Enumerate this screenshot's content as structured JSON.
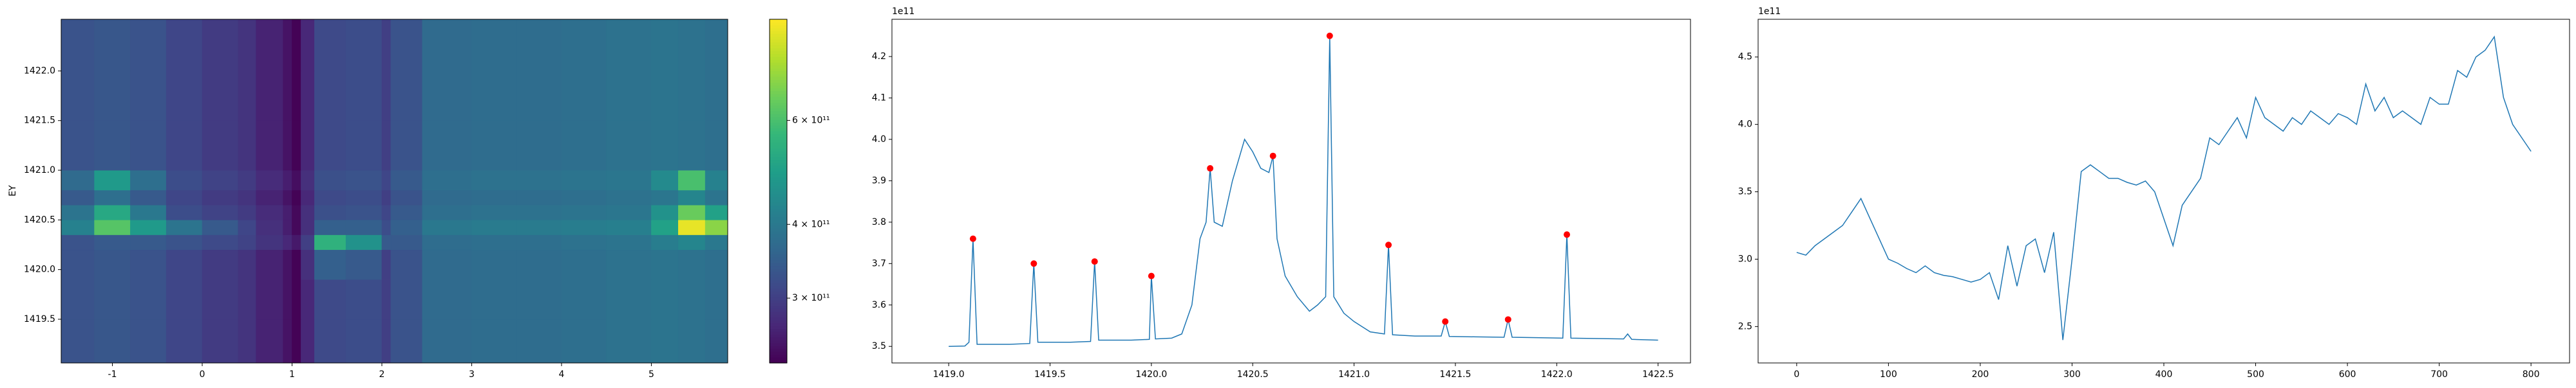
{
  "chart_data": [
    {
      "type": "heatmap",
      "y_label": "EY",
      "colormap": "viridis",
      "color_scale": "log",
      "xlim": [
        -1.57,
        5.85
      ],
      "ylim": [
        1419.06,
        1422.52
      ],
      "xticks": [
        -1,
        0,
        1,
        2,
        3,
        4,
        5
      ],
      "yticks": [
        1419.5,
        {
          "value": 1420,
          "label": "1420.0"
        },
        1420.5,
        {
          "value": 1421,
          "label": "1421.0"
        },
        1421.5,
        {
          "value": 1422,
          "label": "1422.0"
        }
      ],
      "clim": [
        233000000000.0,
        890000000000.0
      ],
      "cticks": [
        {
          "value": 300000000000.0,
          "label": "3 × 10¹¹"
        },
        {
          "value": 400000000000.0,
          "label": "4 × 10¹¹"
        },
        {
          "value": 600000000000.0,
          "label": "6 × 10¹¹"
        }
      ],
      "x_edges": [
        -1.57,
        -1.2,
        -0.8,
        -0.4,
        0,
        0.4,
        0.6,
        0.9,
        1.0,
        1.1,
        1.25,
        1.6,
        2.0,
        2.1,
        2.45,
        3.0,
        3.5,
        4.0,
        4.5,
        5.0,
        5.3,
        5.6,
        5.85
      ],
      "y_edges": [
        1419.06,
        1419.5,
        1419.9,
        1420.2,
        1420.35,
        1420.5,
        1420.65,
        1420.8,
        1421.0,
        1421.5,
        1422.0,
        1422.52
      ],
      "values": [
        [
          330000000000.0,
          335000000000.0,
          330000000000.0,
          310000000000.0,
          295000000000.0,
          285000000000.0,
          265000000000.0,
          250000000000.0,
          235000000000.0,
          270000000000.0,
          315000000000.0,
          320000000000.0,
          300000000000.0,
          330000000000.0,
          370000000000.0,
          375000000000.0,
          375000000000.0,
          380000000000.0,
          385000000000.0,
          390000000000.0,
          385000000000.0,
          380000000000.0
        ],
        [
          330000000000.0,
          335000000000.0,
          330000000000.0,
          310000000000.0,
          295000000000.0,
          285000000000.0,
          265000000000.0,
          250000000000.0,
          235000000000.0,
          270000000000.0,
          315000000000.0,
          320000000000.0,
          300000000000.0,
          330000000000.0,
          370000000000.0,
          375000000000.0,
          375000000000.0,
          380000000000.0,
          385000000000.0,
          390000000000.0,
          385000000000.0,
          380000000000.0
        ],
        [
          330000000000.0,
          335000000000.0,
          330000000000.0,
          310000000000.0,
          295000000000.0,
          285000000000.0,
          265000000000.0,
          250000000000.0,
          235000000000.0,
          280000000000.0,
          350000000000.0,
          340000000000.0,
          300000000000.0,
          330000000000.0,
          370000000000.0,
          375000000000.0,
          375000000000.0,
          380000000000.0,
          385000000000.0,
          390000000000.0,
          385000000000.0,
          380000000000.0
        ],
        [
          330000000000.0,
          340000000000.0,
          340000000000.0,
          330000000000.0,
          315000000000.0,
          305000000000.0,
          285000000000.0,
          270000000000.0,
          255000000000.0,
          300000000000.0,
          550000000000.0,
          460000000000.0,
          340000000000.0,
          340000000000.0,
          375000000000.0,
          380000000000.0,
          380000000000.0,
          385000000000.0,
          390000000000.0,
          410000000000.0,
          430000000000.0,
          400000000000.0
        ],
        [
          420000000000.0,
          620000000000.0,
          480000000000.0,
          390000000000.0,
          340000000000.0,
          310000000000.0,
          280000000000.0,
          260000000000.0,
          240000000000.0,
          280000000000.0,
          350000000000.0,
          350000000000.0,
          320000000000.0,
          350000000000.0,
          400000000000.0,
          405000000000.0,
          405000000000.0,
          410000000000.0,
          415000000000.0,
          500000000000.0,
          850000000000.0,
          700000000000.0
        ],
        [
          390000000000.0,
          520000000000.0,
          400000000000.0,
          320000000000.0,
          305000000000.0,
          295000000000.0,
          275000000000.0,
          260000000000.0,
          240000000000.0,
          280000000000.0,
          325000000000.0,
          330000000000.0,
          310000000000.0,
          340000000000.0,
          380000000000.0,
          385000000000.0,
          385000000000.0,
          390000000000.0,
          395000000000.0,
          460000000000.0,
          650000000000.0,
          500000000000.0
        ],
        [
          340000000000.0,
          380000000000.0,
          340000000000.0,
          310000000000.0,
          295000000000.0,
          285000000000.0,
          265000000000.0,
          250000000000.0,
          235000000000.0,
          270000000000.0,
          315000000000.0,
          320000000000.0,
          300000000000.0,
          330000000000.0,
          370000000000.0,
          375000000000.0,
          375000000000.0,
          380000000000.0,
          385000000000.0,
          395000000000.0,
          430000000000.0,
          390000000000.0
        ],
        [
          370000000000.0,
          480000000000.0,
          380000000000.0,
          320000000000.0,
          305000000000.0,
          295000000000.0,
          275000000000.0,
          260000000000.0,
          245000000000.0,
          280000000000.0,
          325000000000.0,
          330000000000.0,
          310000000000.0,
          340000000000.0,
          380000000000.0,
          385000000000.0,
          385000000000.0,
          390000000000.0,
          395000000000.0,
          440000000000.0,
          600000000000.0,
          420000000000.0
        ],
        [
          330000000000.0,
          335000000000.0,
          330000000000.0,
          310000000000.0,
          295000000000.0,
          285000000000.0,
          265000000000.0,
          250000000000.0,
          235000000000.0,
          270000000000.0,
          315000000000.0,
          320000000000.0,
          300000000000.0,
          330000000000.0,
          370000000000.0,
          375000000000.0,
          375000000000.0,
          380000000000.0,
          385000000000.0,
          390000000000.0,
          385000000000.0,
          380000000000.0
        ],
        [
          330000000000.0,
          335000000000.0,
          330000000000.0,
          310000000000.0,
          295000000000.0,
          285000000000.0,
          265000000000.0,
          250000000000.0,
          235000000000.0,
          270000000000.0,
          315000000000.0,
          320000000000.0,
          300000000000.0,
          330000000000.0,
          370000000000.0,
          375000000000.0,
          375000000000.0,
          380000000000.0,
          385000000000.0,
          390000000000.0,
          385000000000.0,
          380000000000.0
        ],
        [
          330000000000.0,
          335000000000.0,
          330000000000.0,
          310000000000.0,
          295000000000.0,
          285000000000.0,
          265000000000.0,
          250000000000.0,
          235000000000.0,
          270000000000.0,
          315000000000.0,
          320000000000.0,
          300000000000.0,
          330000000000.0,
          370000000000.0,
          375000000000.0,
          375000000000.0,
          380000000000.0,
          385000000000.0,
          390000000000.0,
          385000000000.0,
          380000000000.0
        ]
      ]
    },
    {
      "type": "line",
      "offset_label": "1e11",
      "xlim": [
        1418.72,
        1422.66
      ],
      "ylim": [
        3.46,
        4.29
      ],
      "xticks": [
        {
          "value": 1419,
          "label": "1419.0"
        },
        1419.5,
        {
          "value": 1420,
          "label": "1420.0"
        },
        1420.5,
        {
          "value": 1421,
          "label": "1421.0"
        },
        1421.5,
        {
          "value": 1422,
          "label": "1422.0"
        },
        1422.5
      ],
      "yticks": [
        3.5,
        3.6,
        3.7,
        3.8,
        3.9,
        {
          "value": 4,
          "label": "4.0"
        },
        4.1,
        4.2
      ],
      "series": [
        {
          "kind": "line",
          "color": "#1f77b4",
          "x": [
            1419.0,
            1419.08,
            1419.1,
            1419.12,
            1419.14,
            1419.3,
            1419.4,
            1419.42,
            1419.44,
            1419.6,
            1419.7,
            1419.72,
            1419.74,
            1419.9,
            1419.99,
            1420.0,
            1420.02,
            1420.1,
            1420.15,
            1420.2,
            1420.24,
            1420.27,
            1420.29,
            1420.31,
            1420.35,
            1420.4,
            1420.46,
            1420.5,
            1420.54,
            1420.58,
            1420.6,
            1420.62,
            1420.66,
            1420.72,
            1420.78,
            1420.82,
            1420.86,
            1420.88,
            1420.9,
            1420.95,
            1421.0,
            1421.08,
            1421.15,
            1421.17,
            1421.19,
            1421.3,
            1421.43,
            1421.45,
            1421.47,
            1421.6,
            1421.74,
            1421.76,
            1421.78,
            1421.9,
            1422.03,
            1422.05,
            1422.07,
            1422.2,
            1422.33,
            1422.35,
            1422.37,
            1422.5
          ],
          "values": [
            3.5,
            3.501,
            3.51,
            3.76,
            3.505,
            3.505,
            3.507,
            3.7,
            3.51,
            3.51,
            3.512,
            3.705,
            3.515,
            3.515,
            3.517,
            3.67,
            3.518,
            3.52,
            3.53,
            3.6,
            3.76,
            3.8,
            3.93,
            3.8,
            3.79,
            3.9,
            4.0,
            3.97,
            3.93,
            3.92,
            3.96,
            3.76,
            3.67,
            3.62,
            3.585,
            3.6,
            3.62,
            4.25,
            3.62,
            3.58,
            3.56,
            3.535,
            3.53,
            3.745,
            3.528,
            3.525,
            3.525,
            3.56,
            3.524,
            3.523,
            3.522,
            3.565,
            3.522,
            3.521,
            3.52,
            3.77,
            3.52,
            3.519,
            3.518,
            3.53,
            3.517,
            3.515
          ]
        },
        {
          "kind": "markers",
          "color": "#ff0000",
          "x": [
            1419.12,
            1419.42,
            1419.72,
            1420.0,
            1420.29,
            1420.6,
            1420.88,
            1421.17,
            1421.45,
            1421.76,
            1422.05
          ],
          "values": [
            3.76,
            3.7,
            3.705,
            3.67,
            3.93,
            3.96,
            4.25,
            3.745,
            3.56,
            3.565,
            3.77
          ]
        }
      ]
    },
    {
      "type": "line",
      "offset_label": "1e11",
      "xlim": [
        -42,
        842
      ],
      "ylim": [
        2.23,
        4.78
      ],
      "xticks": [
        0,
        100,
        200,
        300,
        400,
        500,
        600,
        700,
        800
      ],
      "yticks": [
        2.5,
        {
          "value": 3,
          "label": "3.0"
        },
        3.5,
        {
          "value": 4,
          "label": "4.0"
        },
        4.5
      ],
      "series": [
        {
          "kind": "line",
          "color": "#1f77b4",
          "x": [
            0,
            10,
            20,
            30,
            40,
            50,
            60,
            70,
            80,
            90,
            100,
            110,
            120,
            130,
            140,
            150,
            160,
            170,
            180,
            190,
            200,
            210,
            220,
            230,
            240,
            250,
            260,
            270,
            280,
            290,
            300,
            310,
            320,
            330,
            340,
            350,
            360,
            370,
            380,
            390,
            400,
            410,
            420,
            430,
            440,
            450,
            460,
            470,
            480,
            490,
            500,
            510,
            520,
            530,
            540,
            550,
            560,
            570,
            580,
            590,
            600,
            610,
            620,
            630,
            640,
            650,
            660,
            670,
            680,
            690,
            700,
            710,
            720,
            730,
            740,
            750,
            760,
            770,
            780,
            790,
            800
          ],
          "values": [
            3.05,
            3.03,
            3.1,
            3.15,
            3.2,
            3.25,
            3.35,
            3.45,
            3.3,
            3.15,
            3.0,
            2.97,
            2.93,
            2.9,
            2.95,
            2.9,
            2.88,
            2.87,
            2.85,
            2.83,
            2.85,
            2.9,
            2.7,
            3.1,
            2.8,
            3.1,
            3.15,
            2.9,
            3.2,
            2.4,
            3.0,
            3.65,
            3.7,
            3.65,
            3.6,
            3.6,
            3.57,
            3.55,
            3.58,
            3.5,
            3.3,
            3.1,
            3.4,
            3.5,
            3.6,
            3.9,
            3.85,
            3.95,
            4.05,
            3.9,
            4.2,
            4.05,
            4.0,
            3.95,
            4.05,
            4.0,
            4.1,
            4.05,
            4.0,
            4.08,
            4.05,
            4.0,
            4.3,
            4.1,
            4.2,
            4.05,
            4.1,
            4.05,
            4.0,
            4.2,
            4.15,
            4.15,
            4.4,
            4.35,
            4.5,
            4.55,
            4.65,
            4.2,
            4.0,
            3.9,
            3.8
          ]
        }
      ]
    }
  ]
}
